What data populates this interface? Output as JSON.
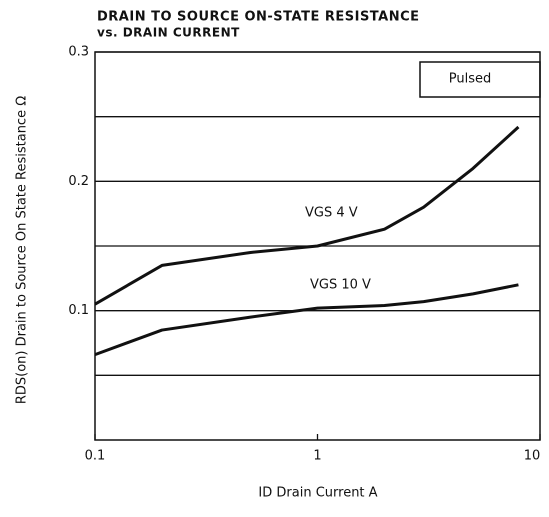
{
  "chart_data": {
    "type": "line",
    "title": "DRAIN TO SOURCE ON-STATE RESISTANCE",
    "subtitle": "vs. DRAIN CURRENT",
    "y_label": "RDS(on) Drain to Source On State Resistance Ω",
    "x_label": "ID Drain Current A",
    "annotations": [
      "Pulsed",
      "VGS 4 V",
      "VGS 10 V"
    ],
    "x": [
      0.1,
      0.2,
      0.5,
      1,
      2,
      3,
      5,
      8
    ],
    "series": [
      {
        "name": "VGS 4 V",
        "color": "#111111",
        "values": [
          0.105,
          0.135,
          0.145,
          0.15,
          0.163,
          0.18,
          0.21,
          0.242
        ]
      },
      {
        "name": "VGS 10 V",
        "color": "#111111",
        "values": [
          0.066,
          0.085,
          0.095,
          0.102,
          0.104,
          0.107,
          0.113,
          0.12
        ]
      }
    ],
    "xlim": [
      0.1,
      10
    ],
    "xticks": [
      0.1,
      1,
      10
    ],
    "xscale": "log",
    "ylim": [
      0,
      0.3
    ],
    "yticks": [
      0.1,
      0.2,
      0.3
    ],
    "yminor_grid": [
      0.05,
      0.15,
      0.25
    ],
    "grid": true
  }
}
